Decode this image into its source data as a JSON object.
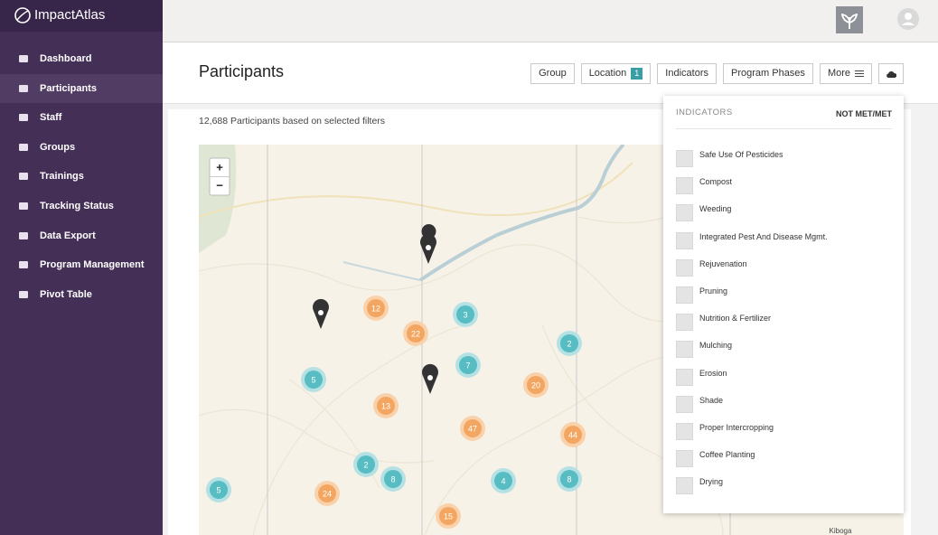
{
  "app": {
    "brand": "ImpactAtlas"
  },
  "sidebar": {
    "items": [
      "Dashboard",
      "Participants",
      "Staff",
      "Groups",
      "Trainings",
      "Tracking Status",
      "Data Export",
      "Program Management",
      "Pivot Table"
    ]
  },
  "header": {
    "title": "Participants",
    "filters": [
      "Group",
      "Location",
      "Indicators",
      "Program Phases",
      "More"
    ],
    "location_badge": 1
  },
  "summary": "12,688 Participants based on selected filters",
  "map": {
    "zoom_in": "+",
    "zoom_out": "−",
    "place_label": "Kiboga",
    "clusters": [
      12,
      22,
      3,
      2,
      5,
      7,
      20,
      13,
      47,
      44,
      2,
      8,
      4,
      8,
      5,
      24,
      15
    ]
  },
  "indicators_panel": {
    "heading": "INDICATORS",
    "toggle": "NOT MET/MET",
    "items": [
      "Safe Use Of Pesticides",
      "Compost",
      "Weeding",
      "Integrated Pest And Disease Mgmt.",
      "Rejuvenation",
      "Pruning",
      "Nutrition & Fertilizer",
      "Mulching",
      "Erosion",
      "Shade",
      "Proper Intercropping",
      "Coffee Planting",
      "Drying"
    ]
  }
}
